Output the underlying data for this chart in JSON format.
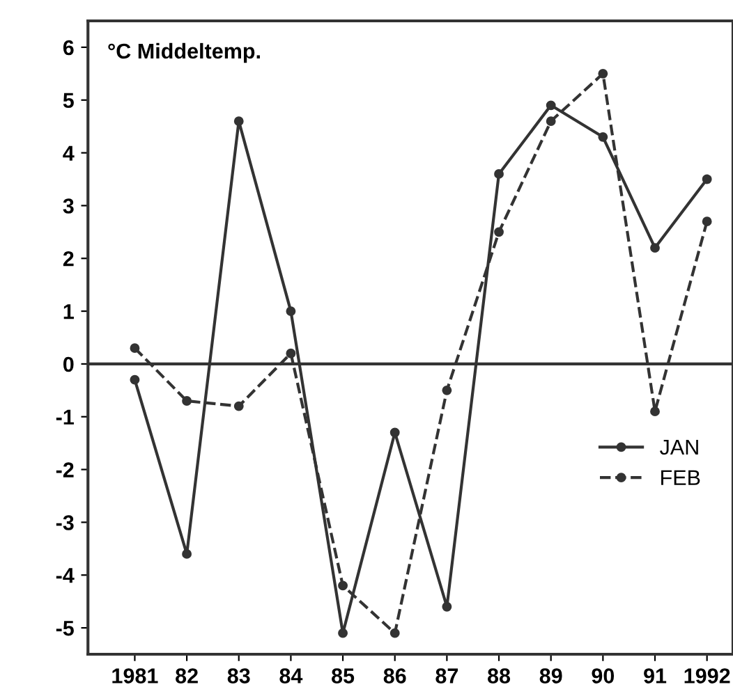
{
  "chart_data": {
    "type": "line",
    "ylabel": "°C Middeltemp.",
    "categories": [
      "1981",
      "82",
      "83",
      "84",
      "85",
      "86",
      "87",
      "88",
      "89",
      "90",
      "91",
      "1992"
    ],
    "series": [
      {
        "name": "JAN",
        "color": "#333333",
        "line_style": "solid",
        "values": [
          -0.3,
          -3.6,
          4.6,
          1.0,
          -5.1,
          -1.3,
          -4.6,
          3.6,
          4.9,
          4.3,
          2.2,
          3.5
        ]
      },
      {
        "name": "FEB",
        "color": "#333333",
        "line_style": "dashed",
        "values": [
          0.3,
          -0.7,
          -0.8,
          0.2,
          -4.2,
          -5.1,
          -0.5,
          2.5,
          4.6,
          5.5,
          -0.9,
          2.7
        ]
      }
    ],
    "ylim": [
      -5.5,
      6.5
    ],
    "yticks": [
      -5,
      -4,
      -3,
      -2,
      -1,
      0,
      1,
      2,
      3,
      4,
      5,
      6
    ],
    "ref_lines": [
      {
        "axis": "y",
        "value": 0,
        "color": "#333333"
      }
    ],
    "marker": "circle",
    "grid": false,
    "legend": "center right"
  }
}
